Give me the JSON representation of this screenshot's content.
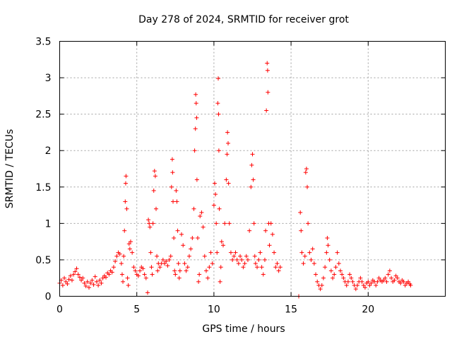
{
  "chart_data": {
    "type": "scatter",
    "title": "Day 278 of 2024, SRMTID for receiver grot",
    "xlabel": "GPS time / hours",
    "ylabel": "SRMTID / TECUs",
    "xlim": [
      0,
      25
    ],
    "ylim": [
      0,
      3.5
    ],
    "xticks": [
      0,
      5,
      10,
      15,
      20
    ],
    "yticks": [
      0,
      0.5,
      1,
      1.5,
      2,
      2.5,
      3,
      3.5
    ],
    "xtick_labels": [
      "0",
      "5",
      "10",
      "15",
      "20"
    ],
    "ytick_labels": [
      "0",
      "0.5",
      "1",
      "1.5",
      "2",
      "2.5",
      "3",
      "3.5"
    ],
    "grid": true,
    "marker": "+",
    "marker_color": "#ff0000",
    "series": [
      {
        "name": "SRMTID",
        "points": [
          [
            0.0,
            0.18
          ],
          [
            0.1,
            0.22
          ],
          [
            0.2,
            0.15
          ],
          [
            0.3,
            0.25
          ],
          [
            0.4,
            0.2
          ],
          [
            0.5,
            0.17
          ],
          [
            0.6,
            0.23
          ],
          [
            0.7,
            0.28
          ],
          [
            0.8,
            0.22
          ],
          [
            0.9,
            0.3
          ],
          [
            1.0,
            0.34
          ],
          [
            1.1,
            0.38
          ],
          [
            1.2,
            0.3
          ],
          [
            1.3,
            0.26
          ],
          [
            1.4,
            0.22
          ],
          [
            1.5,
            0.25
          ],
          [
            1.6,
            0.18
          ],
          [
            1.7,
            0.14
          ],
          [
            1.8,
            0.2
          ],
          [
            1.9,
            0.12
          ],
          [
            2.0,
            0.18
          ],
          [
            2.1,
            0.22
          ],
          [
            2.2,
            0.16
          ],
          [
            2.3,
            0.27
          ],
          [
            2.4,
            0.2
          ],
          [
            2.5,
            0.15
          ],
          [
            2.6,
            0.22
          ],
          [
            2.7,
            0.18
          ],
          [
            2.8,
            0.25
          ],
          [
            2.9,
            0.28
          ],
          [
            3.0,
            0.26
          ],
          [
            3.1,
            0.32
          ],
          [
            3.2,
            0.3
          ],
          [
            3.3,
            0.35
          ],
          [
            3.4,
            0.33
          ],
          [
            3.5,
            0.4
          ],
          [
            3.6,
            0.48
          ],
          [
            3.7,
            0.55
          ],
          [
            3.8,
            0.6
          ],
          [
            3.9,
            0.58
          ],
          [
            4.0,
            0.45
          ],
          [
            4.05,
            0.3
          ],
          [
            4.1,
            0.2
          ],
          [
            4.15,
            0.55
          ],
          [
            4.2,
            0.9
          ],
          [
            4.25,
            1.3
          ],
          [
            4.28,
            1.55
          ],
          [
            4.3,
            1.65
          ],
          [
            4.35,
            1.2
          ],
          [
            4.4,
            0.25
          ],
          [
            4.45,
            0.15
          ],
          [
            4.5,
            0.72
          ],
          [
            4.55,
            0.65
          ],
          [
            4.6,
            0.75
          ],
          [
            4.7,
            0.6
          ],
          [
            4.8,
            0.4
          ],
          [
            4.9,
            0.35
          ],
          [
            5.0,
            0.3
          ],
          [
            5.1,
            0.28
          ],
          [
            5.2,
            0.35
          ],
          [
            5.3,
            0.4
          ],
          [
            5.4,
            0.38
          ],
          [
            5.5,
            0.3
          ],
          [
            5.6,
            0.25
          ],
          [
            5.7,
            0.05
          ],
          [
            5.75,
            1.05
          ],
          [
            5.8,
            1.0
          ],
          [
            5.85,
            0.95
          ],
          [
            5.9,
            0.6
          ],
          [
            5.95,
            0.4
          ],
          [
            6.0,
            0.3
          ],
          [
            6.05,
            1.0
          ],
          [
            6.1,
            1.45
          ],
          [
            6.15,
            1.72
          ],
          [
            6.2,
            1.65
          ],
          [
            6.25,
            1.2
          ],
          [
            6.3,
            0.55
          ],
          [
            6.35,
            0.35
          ],
          [
            6.4,
            0.45
          ],
          [
            6.5,
            0.4
          ],
          [
            6.6,
            0.45
          ],
          [
            6.7,
            0.5
          ],
          [
            6.8,
            0.45
          ],
          [
            6.9,
            0.48
          ],
          [
            7.0,
            0.42
          ],
          [
            7.1,
            0.5
          ],
          [
            7.2,
            0.55
          ],
          [
            7.25,
            1.5
          ],
          [
            7.3,
            1.88
          ],
          [
            7.32,
            1.7
          ],
          [
            7.35,
            1.3
          ],
          [
            7.4,
            0.8
          ],
          [
            7.45,
            0.35
          ],
          [
            7.5,
            0.3
          ],
          [
            7.55,
            1.45
          ],
          [
            7.6,
            1.3
          ],
          [
            7.65,
            0.9
          ],
          [
            7.7,
            0.45
          ],
          [
            7.75,
            0.25
          ],
          [
            7.8,
            0.35
          ],
          [
            7.9,
            0.85
          ],
          [
            8.0,
            0.7
          ],
          [
            8.1,
            0.45
          ],
          [
            8.2,
            0.35
          ],
          [
            8.3,
            0.4
          ],
          [
            8.4,
            0.55
          ],
          [
            8.5,
            0.65
          ],
          [
            8.6,
            0.8
          ],
          [
            8.7,
            1.2
          ],
          [
            8.75,
            2.0
          ],
          [
            8.8,
            2.3
          ],
          [
            8.82,
            2.77
          ],
          [
            8.85,
            2.65
          ],
          [
            8.88,
            2.45
          ],
          [
            8.9,
            1.6
          ],
          [
            8.95,
            0.8
          ],
          [
            9.0,
            0.2
          ],
          [
            9.05,
            0.3
          ],
          [
            9.1,
            1.1
          ],
          [
            9.2,
            1.15
          ],
          [
            9.3,
            0.95
          ],
          [
            9.4,
            0.55
          ],
          [
            9.5,
            0.35
          ],
          [
            9.6,
            0.25
          ],
          [
            9.7,
            0.4
          ],
          [
            9.8,
            0.6
          ],
          [
            9.9,
            0.45
          ],
          [
            10.0,
            1.25
          ],
          [
            10.05,
            1.55
          ],
          [
            10.1,
            1.4
          ],
          [
            10.15,
            1.0
          ],
          [
            10.2,
            0.6
          ],
          [
            10.25,
            2.65
          ],
          [
            10.28,
            2.99
          ],
          [
            10.3,
            2.5
          ],
          [
            10.32,
            2.0
          ],
          [
            10.35,
            1.2
          ],
          [
            10.4,
            0.2
          ],
          [
            10.45,
            0.4
          ],
          [
            10.5,
            0.75
          ],
          [
            10.6,
            0.7
          ],
          [
            10.7,
            1.0
          ],
          [
            10.8,
            1.6
          ],
          [
            10.85,
            1.95
          ],
          [
            10.88,
            2.25
          ],
          [
            10.92,
            2.1
          ],
          [
            10.95,
            1.55
          ],
          [
            11.0,
            1.0
          ],
          [
            11.1,
            0.6
          ],
          [
            11.2,
            0.5
          ],
          [
            11.3,
            0.55
          ],
          [
            11.4,
            0.6
          ],
          [
            11.5,
            0.5
          ],
          [
            11.6,
            0.45
          ],
          [
            11.7,
            0.55
          ],
          [
            11.8,
            0.5
          ],
          [
            11.9,
            0.4
          ],
          [
            12.0,
            0.45
          ],
          [
            12.1,
            0.55
          ],
          [
            12.2,
            0.5
          ],
          [
            12.3,
            0.9
          ],
          [
            12.4,
            1.5
          ],
          [
            12.45,
            1.8
          ],
          [
            12.5,
            1.95
          ],
          [
            12.55,
            1.6
          ],
          [
            12.6,
            1.0
          ],
          [
            12.65,
            0.55
          ],
          [
            12.7,
            0.45
          ],
          [
            12.8,
            0.4
          ],
          [
            12.9,
            0.5
          ],
          [
            13.0,
            0.6
          ],
          [
            13.1,
            0.4
          ],
          [
            13.2,
            0.3
          ],
          [
            13.3,
            0.5
          ],
          [
            13.35,
            0.9
          ],
          [
            13.4,
            2.55
          ],
          [
            13.45,
            3.2
          ],
          [
            13.48,
            3.1
          ],
          [
            13.5,
            2.8
          ],
          [
            13.55,
            1.0
          ],
          [
            13.6,
            0.7
          ],
          [
            13.7,
            1.0
          ],
          [
            13.8,
            0.85
          ],
          [
            13.9,
            0.6
          ],
          [
            14.0,
            0.4
          ],
          [
            14.1,
            0.45
          ],
          [
            14.2,
            0.35
          ],
          [
            14.3,
            0.4
          ],
          [
            15.5,
            0.0
          ],
          [
            15.6,
            1.15
          ],
          [
            15.65,
            0.9
          ],
          [
            15.7,
            0.6
          ],
          [
            15.8,
            0.45
          ],
          [
            15.9,
            0.55
          ],
          [
            15.95,
            1.7
          ],
          [
            16.0,
            1.75
          ],
          [
            16.05,
            1.5
          ],
          [
            16.1,
            1.0
          ],
          [
            16.2,
            0.6
          ],
          [
            16.3,
            0.5
          ],
          [
            16.4,
            0.65
          ],
          [
            16.5,
            0.45
          ],
          [
            16.6,
            0.3
          ],
          [
            16.7,
            0.2
          ],
          [
            16.8,
            0.15
          ],
          [
            16.9,
            0.1
          ],
          [
            17.0,
            0.15
          ],
          [
            17.1,
            0.25
          ],
          [
            17.2,
            0.4
          ],
          [
            17.3,
            0.6
          ],
          [
            17.35,
            0.8
          ],
          [
            17.4,
            0.7
          ],
          [
            17.5,
            0.5
          ],
          [
            17.6,
            0.35
          ],
          [
            17.7,
            0.25
          ],
          [
            17.8,
            0.3
          ],
          [
            17.9,
            0.4
          ],
          [
            18.0,
            0.6
          ],
          [
            18.1,
            0.45
          ],
          [
            18.2,
            0.35
          ],
          [
            18.3,
            0.3
          ],
          [
            18.4,
            0.25
          ],
          [
            18.5,
            0.2
          ],
          [
            18.6,
            0.15
          ],
          [
            18.7,
            0.2
          ],
          [
            18.8,
            0.3
          ],
          [
            18.9,
            0.25
          ],
          [
            19.0,
            0.2
          ],
          [
            19.1,
            0.15
          ],
          [
            19.2,
            0.1
          ],
          [
            19.3,
            0.15
          ],
          [
            19.4,
            0.2
          ],
          [
            19.5,
            0.25
          ],
          [
            19.6,
            0.2
          ],
          [
            19.7,
            0.15
          ],
          [
            19.8,
            0.12
          ],
          [
            19.9,
            0.18
          ],
          [
            20.0,
            0.2
          ],
          [
            20.1,
            0.15
          ],
          [
            20.2,
            0.18
          ],
          [
            20.3,
            0.22
          ],
          [
            20.4,
            0.2
          ],
          [
            20.5,
            0.15
          ],
          [
            20.6,
            0.2
          ],
          [
            20.7,
            0.25
          ],
          [
            20.8,
            0.22
          ],
          [
            20.9,
            0.2
          ],
          [
            21.0,
            0.22
          ],
          [
            21.1,
            0.25
          ],
          [
            21.2,
            0.2
          ],
          [
            21.3,
            0.3
          ],
          [
            21.4,
            0.35
          ],
          [
            21.5,
            0.25
          ],
          [
            21.6,
            0.2
          ],
          [
            21.7,
            0.22
          ],
          [
            21.8,
            0.28
          ],
          [
            21.9,
            0.25
          ],
          [
            22.0,
            0.2
          ],
          [
            22.1,
            0.18
          ],
          [
            22.2,
            0.22
          ],
          [
            22.3,
            0.2
          ],
          [
            22.4,
            0.15
          ],
          [
            22.5,
            0.18
          ],
          [
            22.6,
            0.2
          ],
          [
            22.7,
            0.17
          ],
          [
            22.75,
            0.15
          ]
        ]
      }
    ]
  }
}
